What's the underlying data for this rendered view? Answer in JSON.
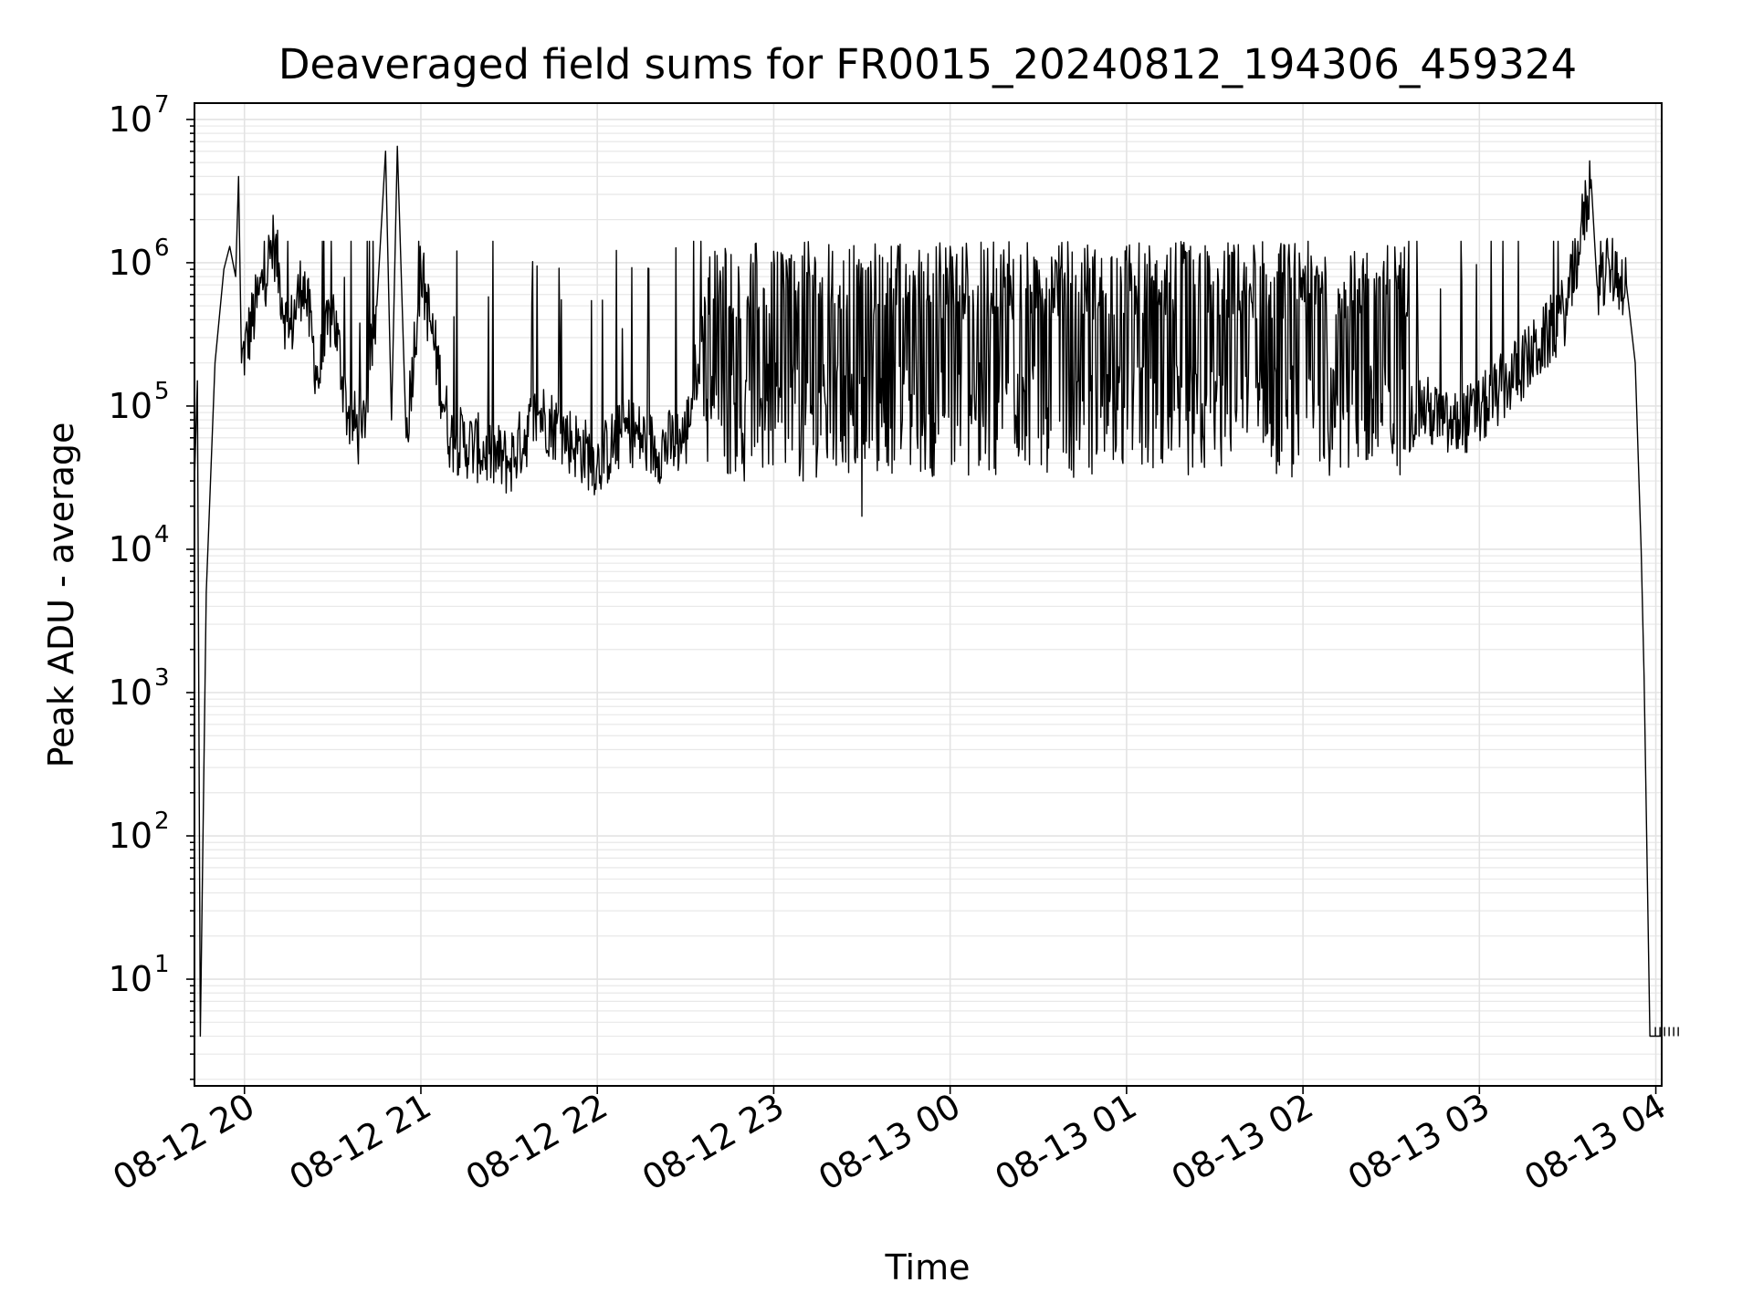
{
  "chart_data": {
    "type": "line",
    "title": "Deaveraged field sums for FR0015_20240812_194306_459324",
    "xlabel": "Time",
    "ylabel": "Peak ADU - average",
    "yscale": "log",
    "ylim": [
      1.8,
      13000000
    ],
    "xlim": [
      "2024-08-12 19:43",
      "2024-08-13 04:02"
    ],
    "grid": true,
    "x_ticks": [
      "08-12 20",
      "08-12 21",
      "08-12 22",
      "08-12 23",
      "08-13 00",
      "08-13 01",
      "08-13 02",
      "08-13 03",
      "08-13 04"
    ],
    "y_ticks": [
      {
        "base": "10",
        "exp": "1",
        "value": 10
      },
      {
        "base": "10",
        "exp": "2",
        "value": 100
      },
      {
        "base": "10",
        "exp": "3",
        "value": 1000
      },
      {
        "base": "10",
        "exp": "4",
        "value": 10000
      },
      {
        "base": "10",
        "exp": "5",
        "value": 100000
      },
      {
        "base": "10",
        "exp": "6",
        "value": 1000000
      },
      {
        "base": "10",
        "exp": "7",
        "value": 10000000
      }
    ],
    "series": [
      {
        "color": "#000000",
        "points": [
          [
            "2024-08-12 19:43",
            30000
          ],
          [
            "2024-08-12 19:44",
            150000
          ],
          [
            "2024-08-12 19:45",
            4
          ],
          [
            "2024-08-12 19:47",
            5000
          ],
          [
            "2024-08-12 19:50",
            200000
          ],
          [
            "2024-08-12 19:53",
            900000
          ],
          [
            "2024-08-12 19:55",
            1300000
          ],
          [
            "2024-08-12 19:57",
            800000
          ],
          [
            "2024-08-12 19:58",
            4000000
          ],
          [
            "2024-08-12 19:59",
            200000
          ],
          [
            "2024-08-12 20:05",
            600000
          ],
          [
            "2024-08-12 20:10",
            1400000
          ],
          [
            "2024-08-12 20:15",
            300000
          ],
          [
            "2024-08-12 20:20",
            800000
          ],
          [
            "2024-08-12 20:25",
            150000
          ],
          [
            "2024-08-12 20:30",
            500000
          ],
          [
            "2024-08-12 20:35",
            90000
          ],
          [
            "2024-08-12 20:40",
            60000
          ],
          [
            "2024-08-12 20:45",
            500000
          ],
          [
            "2024-08-12 20:48",
            6000000
          ],
          [
            "2024-08-12 20:50",
            80000
          ],
          [
            "2024-08-12 20:52",
            6500000
          ],
          [
            "2024-08-12 20:55",
            60000
          ],
          [
            "2024-08-12 21:00",
            900000
          ],
          [
            "2024-08-12 21:10",
            60000
          ],
          [
            "2024-08-12 21:20",
            50000
          ],
          [
            "2024-08-12 21:30",
            40000
          ],
          [
            "2024-08-12 21:40",
            90000
          ],
          [
            "2024-08-12 21:50",
            60000
          ],
          [
            "2024-08-12 22:00",
            40000
          ],
          [
            "2024-08-12 22:10",
            70000
          ],
          [
            "2024-08-12 22:20",
            50000
          ],
          [
            "2024-08-12 22:30",
            60000
          ],
          [
            "2024-08-12 22:40",
            1200000
          ],
          [
            "2024-08-12 22:50",
            30000
          ],
          [
            "2024-08-12 23:00",
            1200000
          ],
          [
            "2024-08-12 23:10",
            30000
          ],
          [
            "2024-08-12 23:20",
            1200000
          ],
          [
            "2024-08-12 23:30",
            17000
          ],
          [
            "2024-08-12 23:40",
            1300000
          ],
          [
            "2024-08-12 23:50",
            35000
          ],
          [
            "2024-08-13 00:00",
            1300000
          ],
          [
            "2024-08-13 00:10",
            200000
          ],
          [
            "2024-08-13 00:20",
            1400000
          ],
          [
            "2024-08-13 00:30",
            60000
          ],
          [
            "2024-08-13 00:40",
            1400000
          ],
          [
            "2024-08-13 00:50",
            50000
          ],
          [
            "2024-08-13 01:00",
            1300000
          ],
          [
            "2024-08-13 01:10",
            70000
          ],
          [
            "2024-08-13 01:20",
            1200000
          ],
          [
            "2024-08-13 01:30",
            50000
          ],
          [
            "2024-08-13 01:40",
            1000000
          ],
          [
            "2024-08-13 01:50",
            60000
          ],
          [
            "2024-08-13 02:00",
            900000
          ],
          [
            "2024-08-13 02:10",
            50000
          ],
          [
            "2024-08-13 02:20",
            80000
          ],
          [
            "2024-08-13 02:30",
            60000
          ],
          [
            "2024-08-13 02:40",
            100000
          ],
          [
            "2024-08-13 02:50",
            70000
          ],
          [
            "2024-08-13 03:00",
            90000
          ],
          [
            "2024-08-13 03:10",
            150000
          ],
          [
            "2024-08-13 03:20",
            250000
          ],
          [
            "2024-08-13 03:30",
            500000
          ],
          [
            "2024-08-13 03:38",
            3800000
          ],
          [
            "2024-08-13 03:40",
            700000
          ],
          [
            "2024-08-13 03:45",
            900000
          ],
          [
            "2024-08-13 03:50",
            700000
          ],
          [
            "2024-08-13 03:53",
            200000
          ],
          [
            "2024-08-13 03:55",
            10000
          ],
          [
            "2024-08-13 03:56",
            1300
          ],
          [
            "2024-08-13 03:58",
            4
          ],
          [
            "2024-08-13 04:02",
            4
          ]
        ]
      }
    ]
  }
}
